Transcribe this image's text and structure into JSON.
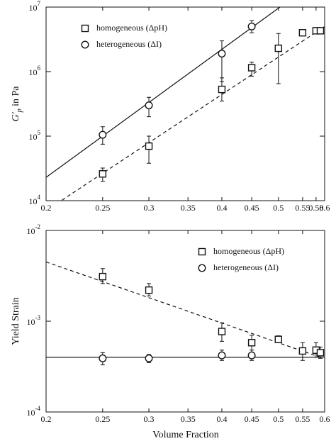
{
  "chart_data": [
    {
      "type": "scatter",
      "log_x": true,
      "log_y": true,
      "legend": "upper left",
      "ylabel": [
        "G'",
        "p",
        " in Pa"
      ],
      "xlim": [
        0.2,
        0.6
      ],
      "xticks": [
        0.2,
        0.25,
        0.3,
        0.35,
        0.4,
        0.45,
        0.5,
        0.55,
        0.58,
        0.6
      ],
      "ylim": [
        10000,
        10000000
      ],
      "yticks": [
        {
          "value": 10000,
          "label": "10",
          "exponent": "4"
        },
        {
          "value": 100000,
          "label": "10",
          "exponent": "5"
        },
        {
          "value": 1000000,
          "label": "10",
          "exponent": "6"
        },
        {
          "value": 10000000,
          "label": "10",
          "exponent": "7"
        }
      ],
      "series": [
        {
          "name": "homogeneous (ΔpH)",
          "marker": "square",
          "color": "#111111",
          "x": [
            0.25,
            0.3,
            0.4,
            0.45,
            0.5,
            0.55,
            0.58,
            0.59
          ],
          "values": [
            26000,
            70000,
            530000,
            1150000,
            2300000,
            4000000,
            4300000,
            4300000
          ],
          "error_low": [
            20000,
            38000,
            350000,
            850000,
            650000,
            3800000,
            3900000,
            3900000
          ],
          "error_high": [
            32000,
            100000,
            800000,
            1400000,
            3900000,
            4300000,
            4800000,
            4800000
          ]
        },
        {
          "name": "heterogeneous (ΔI)",
          "marker": "circle",
          "color": "#111111",
          "x": [
            0.25,
            0.3,
            0.4,
            0.45
          ],
          "values": [
            105000,
            300000,
            1900000,
            5000000
          ],
          "error_low": [
            75000,
            200000,
            700000,
            4000000
          ],
          "error_high": [
            140000,
            400000,
            3000000,
            6200000
          ]
        }
      ],
      "fits": [
        {
          "style": "solid",
          "x": [
            0.2,
            0.6
          ],
          "values": [
            23000,
            32000000
          ]
        },
        {
          "style": "dashed",
          "x": [
            0.2,
            0.6
          ],
          "values": [
            7000,
            5000000
          ]
        }
      ]
    },
    {
      "type": "scatter",
      "log_x": true,
      "log_y": true,
      "legend": "upper right",
      "ylabel": [
        "Yield Strain"
      ],
      "xlabel": "Volume Fraction",
      "xlim": [
        0.2,
        0.6
      ],
      "xticks": [
        0.2,
        0.25,
        0.3,
        0.35,
        0.4,
        0.45,
        0.5,
        0.55,
        0.6
      ],
      "ylim": [
        0.0001,
        0.01
      ],
      "yticks": [
        {
          "value": 0.0001,
          "label": "10",
          "exponent": "-4"
        },
        {
          "value": 0.001,
          "label": "10",
          "exponent": "-3"
        },
        {
          "value": 0.01,
          "label": "10",
          "exponent": "-2"
        }
      ],
      "series": [
        {
          "name": "homogeneous (ΔpH)",
          "marker": "square",
          "color": "#111111",
          "x": [
            0.25,
            0.3,
            0.4,
            0.45,
            0.5,
            0.55,
            0.58,
            0.59
          ],
          "values": [
            0.0031,
            0.0022,
            0.00077,
            0.00058,
            0.00063,
            0.00047,
            0.00048,
            0.00045
          ],
          "error_low": [
            0.0026,
            0.0019,
            0.0006,
            0.00045,
            0.00058,
            0.00037,
            0.0004,
            0.00039
          ],
          "error_high": [
            0.0038,
            0.0026,
            0.00096,
            0.0007,
            0.00069,
            0.00058,
            0.00058,
            0.00052
          ]
        },
        {
          "name": "heterogeneous (ΔI)",
          "marker": "circle",
          "color": "#111111",
          "x": [
            0.25,
            0.3,
            0.4,
            0.45
          ],
          "values": [
            0.00039,
            0.00039,
            0.00042,
            0.00042
          ],
          "error_low": [
            0.00033,
            0.00035,
            0.00037,
            0.00037
          ],
          "error_high": [
            0.00045,
            0.00043,
            0.00048,
            0.00048
          ]
        }
      ],
      "fits": [
        {
          "style": "solid",
          "x": [
            0.2,
            0.6
          ],
          "values": [
            0.0004,
            0.0004
          ]
        },
        {
          "style": "dashed",
          "x": [
            0.2,
            0.59
          ],
          "values": [
            0.0045,
            0.0004
          ]
        }
      ]
    }
  ]
}
